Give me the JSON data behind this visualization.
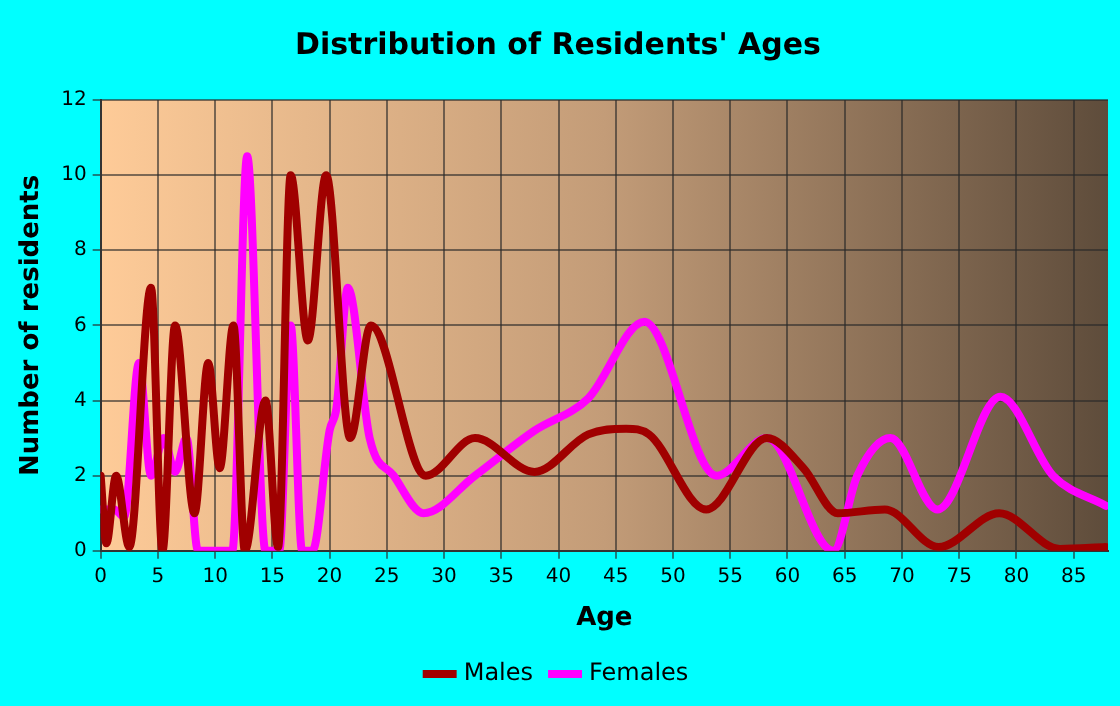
{
  "chart_data": {
    "type": "line",
    "title": "Distribution of Residents' Ages",
    "xlabel": "Age",
    "ylabel": "Number of residents",
    "xlim": [
      0,
      88
    ],
    "xticks": [
      0,
      5,
      10,
      15,
      20,
      25,
      30,
      35,
      40,
      45,
      50,
      55,
      60,
      65,
      70,
      75,
      80,
      85
    ],
    "ylim": [
      0,
      12
    ],
    "yticks": [
      0,
      2,
      4,
      6,
      8,
      10,
      12
    ],
    "grid": true,
    "legend": "bottom",
    "marker": "none",
    "line_style": "solid",
    "series": [
      {
        "name": "Males",
        "color": "#a00000",
        "x": [
          0,
          0.5,
          1.35,
          2.5,
          4.4,
          5.4,
          6.5,
          8.2,
          9.4,
          10.4,
          11.6,
          12.6,
          14.4,
          15.5,
          16.6,
          18.1,
          19.7,
          21.8,
          23.6,
          28.4,
          32.7,
          37.9,
          42.6,
          45.9,
          47.9,
          52.9,
          58.2,
          61.4,
          64.4,
          68.5,
          73.2,
          78.5,
          83.8,
          87.8
        ],
        "values": [
          2,
          0.2,
          2,
          0.1,
          7,
          0,
          6,
          1,
          5,
          2.2,
          6,
          0,
          4,
          0.1,
          10,
          5.6,
          10,
          3,
          6,
          2,
          3,
          2.1,
          3.1,
          3.25,
          3.1,
          1.1,
          3,
          2.2,
          1,
          1.1,
          0.1,
          1,
          0.05,
          0.1
        ]
      },
      {
        "name": "Females",
        "color": "#ff00ff",
        "x": [
          0,
          1.2,
          2.05,
          3.35,
          4.4,
          5.5,
          6.5,
          7.5,
          8.5,
          11.5,
          12.8,
          14.4,
          15.6,
          16.6,
          17.6,
          18.5,
          20,
          20.6,
          21.6,
          23.5,
          25.6,
          28.2,
          32.7,
          37.9,
          42.6,
          47.5,
          53.8,
          58.2,
          64,
          66.1,
          69,
          73.1,
          78.6,
          83.2,
          87.8
        ],
        "values": [
          1.1,
          1.1,
          0.9,
          5,
          2,
          3,
          2.1,
          3,
          0,
          0,
          10.5,
          0,
          0,
          6,
          0,
          0,
          3.2,
          3.8,
          7,
          3,
          2,
          1,
          2,
          3.2,
          4.06,
          6.1,
          2,
          3,
          0,
          2,
          3,
          1.1,
          4.1,
          2,
          1.2
        ]
      }
    ]
  }
}
